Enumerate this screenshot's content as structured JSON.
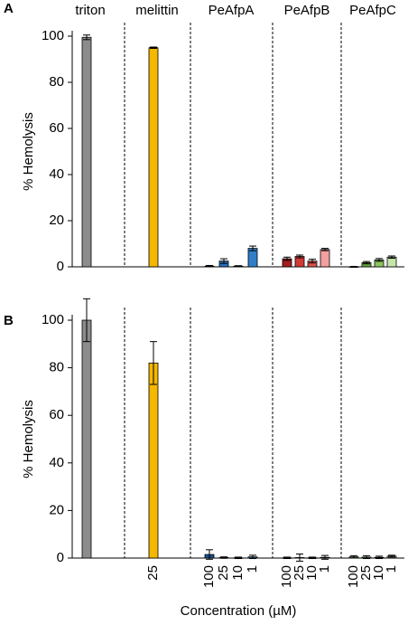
{
  "chart_data": [
    {
      "type": "bar",
      "panel": "A",
      "ylabel": "% Hemolysis",
      "ylim": [
        0,
        100
      ],
      "yticks": [
        0,
        20,
        40,
        60,
        80,
        100
      ],
      "groups": [
        {
          "name": "triton",
          "colors": [
            "#8c8c8c"
          ],
          "values": [
            99.5
          ],
          "errors": [
            1
          ]
        },
        {
          "name": "melittin",
          "colors": [
            "#f5b800"
          ],
          "values": [
            95
          ],
          "errors": [
            0.3
          ]
        },
        {
          "name": "PeAfpA",
          "colors": [
            "#1c4f8f",
            "#2a6fb8",
            "#4f8fd0",
            "#2f7fc8"
          ],
          "values": [
            0.3,
            2.5,
            0.3,
            8
          ],
          "errors": [
            0.3,
            1,
            0.2,
            1
          ]
        },
        {
          "name": "PeAfpB",
          "colors": [
            "#a51d1d",
            "#d03a36",
            "#d9534f",
            "#f2a0a0"
          ],
          "values": [
            3.5,
            4.5,
            2.5,
            7.5
          ],
          "errors": [
            0.7,
            0.6,
            0.8,
            0.5
          ]
        },
        {
          "name": "PeAfpC",
          "colors": [
            "#3d7a2a",
            "#5fa83f",
            "#8cc65e",
            "#c6e5ac"
          ],
          "values": [
            0,
            1.8,
            3,
            4.2
          ],
          "errors": [
            0.2,
            0.5,
            0.6,
            0.5
          ]
        }
      ]
    },
    {
      "type": "bar",
      "panel": "B",
      "ylabel": "% Hemolysis",
      "xlabel": "Concentration (µM)",
      "ylim": [
        0,
        100
      ],
      "yticks": [
        0,
        20,
        40,
        60,
        80,
        100
      ],
      "groups": [
        {
          "categories": [
            null
          ],
          "colors": [
            "#8c8c8c"
          ],
          "values": [
            100
          ],
          "errors": [
            9
          ]
        },
        {
          "categories": [
            "25"
          ],
          "colors": [
            "#f5b800"
          ],
          "values": [
            82
          ],
          "errors": [
            9
          ]
        },
        {
          "categories": [
            "100",
            "25",
            "10",
            "1"
          ],
          "colors": [
            "#1c4f8f",
            "#2a6fb8",
            "#4f8fd0",
            "#2f7fc8"
          ],
          "values": [
            1.5,
            0.2,
            0.1,
            0.5
          ],
          "errors": [
            2,
            0.3,
            0.3,
            0.7
          ]
        },
        {
          "categories": [
            "100",
            "25",
            "10",
            "1"
          ],
          "colors": [
            "#a51d1d",
            "#d03a36",
            "#d9534f",
            "#f2a0a0"
          ],
          "values": [
            0.1,
            0.2,
            0.1,
            0.3
          ],
          "errors": [
            0.3,
            1.5,
            0.3,
            0.8
          ]
        },
        {
          "categories": [
            "100",
            "25",
            "10",
            "1"
          ],
          "colors": [
            "#3d7a2a",
            "#5fa83f",
            "#8cc65e",
            "#c6e5ac"
          ],
          "values": [
            0.5,
            0.4,
            0.3,
            0.8
          ],
          "errors": [
            0.5,
            0.6,
            0.5,
            0.4
          ]
        }
      ]
    }
  ]
}
